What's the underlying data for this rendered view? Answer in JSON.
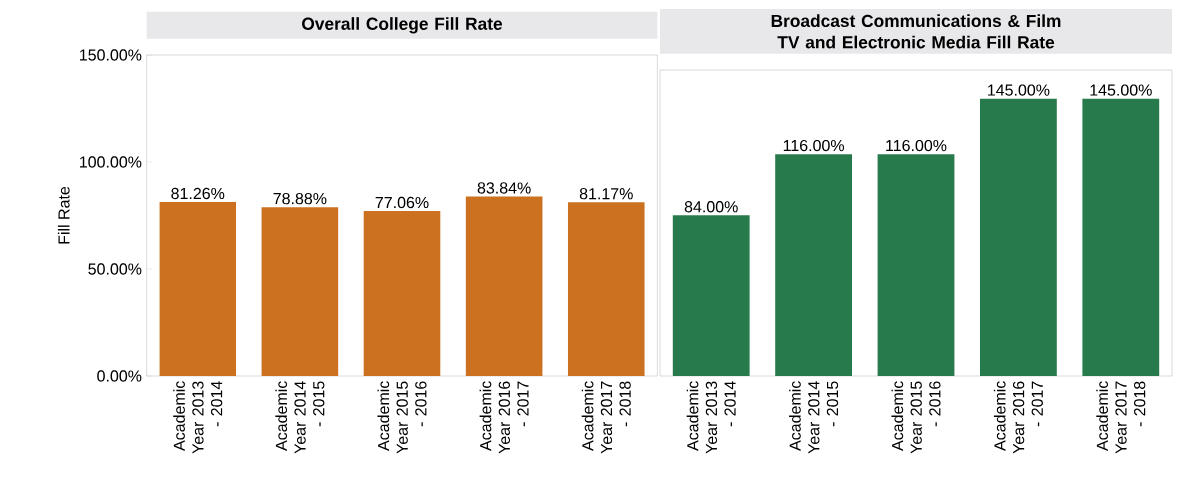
{
  "chart_data": [
    {
      "type": "bar",
      "title": "Overall College Fill Rate",
      "ylabel": "Fill Rate",
      "categories": [
        "Academic Year 2013 - 2014",
        "Academic Year 2014 - 2015",
        "Academic Year 2015 - 2016",
        "Academic Year 2016 - 2017",
        "Academic Year 2017 - 2018"
      ],
      "values": [
        81.26,
        78.88,
        77.06,
        83.84,
        81.17
      ],
      "value_labels": [
        "81.26%",
        "78.88%",
        "77.06%",
        "83.84%",
        "81.17%"
      ],
      "color": "#cc711f",
      "ylim": [
        0,
        150
      ],
      "yticks": [
        {
          "value": 0,
          "label": "0.00%"
        },
        {
          "value": 50,
          "label": "50.00%"
        },
        {
          "value": 100,
          "label": "100.00%"
        },
        {
          "value": 150,
          "label": "150.00%"
        }
      ]
    },
    {
      "type": "bar",
      "title": "Broadcast Communications & Film TV and Electronic Media Fill Rate",
      "categories": [
        "Academic Year 2013 - 2014",
        "Academic Year 2014 - 2015",
        "Academic Year 2015 - 2016",
        "Academic Year 2016 - 2017",
        "Academic Year 2017 - 2018"
      ],
      "values": [
        84,
        116,
        116,
        145,
        145
      ],
      "value_labels": [
        "84.00%",
        "116.00%",
        "116.00%",
        "145.00%",
        "145.00%"
      ],
      "color": "#277a4c",
      "ylim": [
        0,
        160
      ],
      "tick_labels": "x"
    }
  ]
}
